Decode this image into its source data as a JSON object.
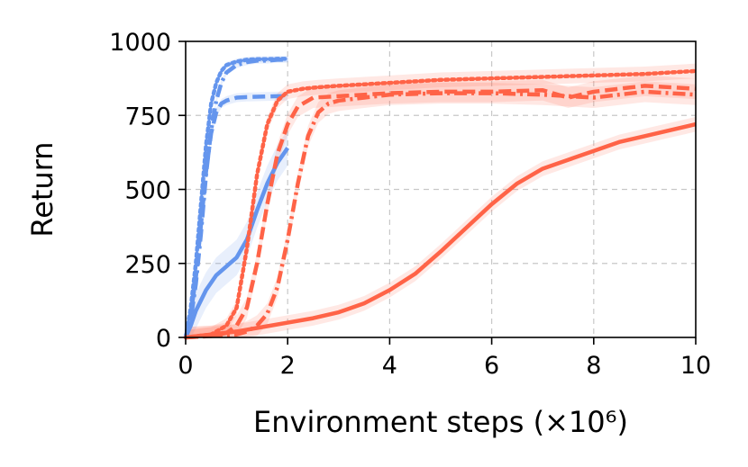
{
  "chart_data": {
    "type": "line",
    "title": "",
    "xlabel": "Environment steps (×10⁶)",
    "ylabel": "Return",
    "xlim": [
      0,
      10
    ],
    "ylim": [
      0,
      1000
    ],
    "xticks": [
      0,
      2,
      4,
      6,
      8,
      10
    ],
    "yticks": [
      0,
      250,
      500,
      750,
      1000
    ],
    "xtick_labels": [
      "0",
      "2",
      "4",
      "6",
      "8",
      "10"
    ],
    "ytick_labels": [
      "0",
      "250",
      "500",
      "750",
      "1000"
    ],
    "grid": true,
    "legend": "none",
    "colors": {
      "blue": "#6495ed",
      "red": "#ff6347"
    },
    "series": [
      {
        "color": "#6495ed",
        "style": "solid",
        "x": [
          0,
          0.1,
          0.2,
          0.4,
          0.6,
          0.8,
          1.0,
          1.2,
          1.4,
          1.6,
          1.8,
          2.0
        ],
        "y": [
          0,
          40,
          90,
          160,
          210,
          240,
          270,
          330,
          430,
          520,
          590,
          640
        ],
        "band": 60
      },
      {
        "color": "#6495ed",
        "style": "dashed",
        "x": [
          0,
          0.1,
          0.2,
          0.3,
          0.4,
          0.5,
          0.6,
          0.7,
          0.8,
          0.9,
          1.0,
          1.2,
          1.4,
          1.6,
          1.8,
          2.0
        ],
        "y": [
          0,
          80,
          200,
          380,
          560,
          690,
          760,
          790,
          800,
          805,
          810,
          812,
          813,
          814,
          815,
          815
        ],
        "band": 15
      },
      {
        "color": "#6495ed",
        "style": "dashdot",
        "x": [
          0,
          0.1,
          0.2,
          0.3,
          0.4,
          0.5,
          0.6,
          0.7,
          0.8,
          1.0,
          1.2,
          1.4,
          1.6,
          1.8,
          2.0
        ],
        "y": [
          0,
          60,
          180,
          350,
          550,
          700,
          800,
          860,
          895,
          920,
          930,
          935,
          935,
          938,
          938
        ],
        "band": 10
      },
      {
        "color": "#6495ed",
        "style": "dotted",
        "x": [
          0,
          0.1,
          0.2,
          0.3,
          0.4,
          0.5,
          0.6,
          0.7,
          0.8,
          1.0,
          1.2,
          1.4,
          1.6,
          1.8,
          2.0
        ],
        "y": [
          0,
          100,
          250,
          450,
          650,
          790,
          860,
          900,
          920,
          932,
          938,
          940,
          940,
          941,
          941
        ],
        "band": 10
      },
      {
        "color": "#ff6347",
        "style": "solid",
        "x": [
          0,
          0.5,
          1.0,
          1.5,
          2.0,
          2.5,
          3.0,
          3.5,
          4.0,
          4.5,
          5.0,
          5.5,
          6.0,
          6.5,
          7.0,
          7.5,
          8.0,
          8.5,
          9.0,
          9.5,
          10.0
        ],
        "y": [
          0,
          10,
          20,
          35,
          50,
          65,
          85,
          115,
          160,
          215,
          290,
          370,
          450,
          520,
          570,
          600,
          630,
          660,
          680,
          700,
          720
        ],
        "band": 25
      },
      {
        "color": "#ff6347",
        "style": "dashed",
        "x": [
          0,
          0.5,
          0.8,
          1.0,
          1.2,
          1.4,
          1.6,
          1.8,
          2.0,
          2.2,
          2.5,
          3.0,
          3.5,
          4.0,
          5.0,
          6.0,
          7.0,
          7.5,
          8.0,
          9.0,
          10.0
        ],
        "y": [
          0,
          5,
          15,
          40,
          100,
          250,
          450,
          620,
          720,
          780,
          810,
          815,
          820,
          825,
          830,
          830,
          835,
          810,
          830,
          850,
          840
        ],
        "band": 35
      },
      {
        "color": "#ff6347",
        "style": "dashdot",
        "x": [
          0,
          0.5,
          1.0,
          1.2,
          1.4,
          1.6,
          1.8,
          2.0,
          2.2,
          2.4,
          2.6,
          2.8,
          3.0,
          3.5,
          4.0,
          5.0,
          6.0,
          7.0,
          8.0,
          9.0,
          10.0
        ],
        "y": [
          0,
          5,
          10,
          20,
          40,
          80,
          170,
          330,
          520,
          680,
          760,
          790,
          800,
          810,
          820,
          825,
          825,
          820,
          810,
          830,
          820
        ],
        "band": 35
      },
      {
        "color": "#ff6347",
        "style": "dotted",
        "x": [
          0,
          0.5,
          0.8,
          1.0,
          1.2,
          1.4,
          1.6,
          1.8,
          2.0,
          2.3,
          2.6,
          3.0,
          3.5,
          4.0,
          5.0,
          6.0,
          7.0,
          8.0,
          9.0,
          10.0
        ],
        "y": [
          0,
          10,
          40,
          100,
          300,
          550,
          720,
          800,
          830,
          840,
          845,
          850,
          855,
          860,
          870,
          875,
          880,
          885,
          890,
          900
        ],
        "band": 25
      }
    ]
  }
}
